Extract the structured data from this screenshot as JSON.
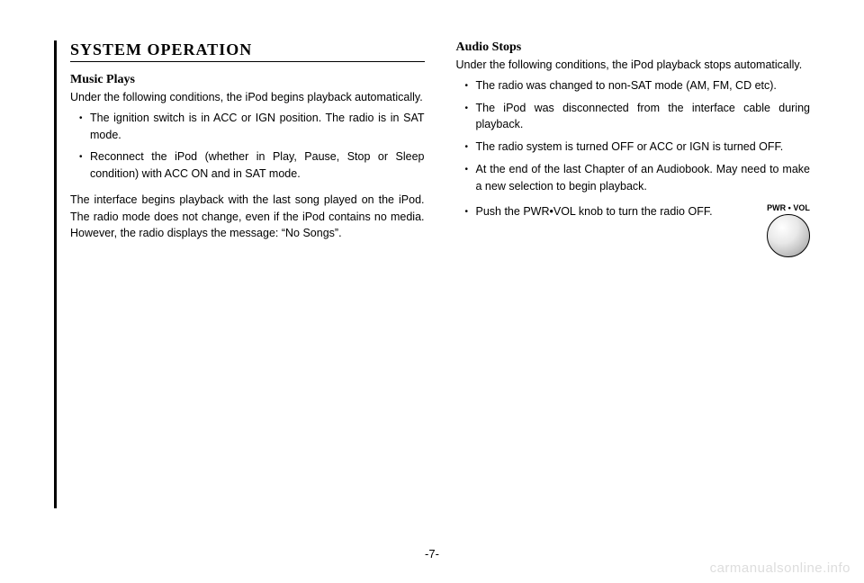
{
  "left": {
    "sectionTitle": "SYSTEM OPERATION",
    "subtitle": "Music Plays",
    "intro": "Under the following conditions, the iPod begins playback automatically.",
    "bullets": [
      "The ignition switch is in ACC or IGN position. The radio is in SAT mode.",
      "Reconnect the iPod (whether in Play, Pause, Stop or Sleep condition) with ACC ON and in SAT mode."
    ],
    "paragraph": "The interface begins playback with the last song played on the iPod. The radio mode does not change, even if the iPod contains no media. However, the radio displays the message: “No Songs”."
  },
  "right": {
    "subtitle": "Audio Stops",
    "intro": "Under the following conditions, the iPod playback stops automatically.",
    "bullets": [
      "The radio was changed to non-SAT mode (AM, FM, CD etc).",
      "The iPod was disconnected from the interface cable during playback.",
      "The radio system is turned OFF or ACC or IGN is turned OFF.",
      "At the end of the last Chapter of an Audiobook. May need to make a new selection to begin playback."
    ],
    "knobText": "Push the PWR•VOL knob to turn the radio OFF.",
    "knobLabel": "PWR • VOL"
  },
  "pageNumber": "-7-",
  "watermark": "carmanualsonline.info",
  "styling": {
    "background_color": "#ffffff",
    "text_color": "#000000",
    "watermark_color": "#dddddd",
    "vertical_line_color": "#000000",
    "body_font_size": 12.5,
    "title_font_size": 18,
    "subtitle_font_size": 14,
    "knob_diameter": 48,
    "knob_gradient": [
      "#ffffff",
      "#e8e8e8",
      "#c0c0c0",
      "#888888"
    ]
  }
}
